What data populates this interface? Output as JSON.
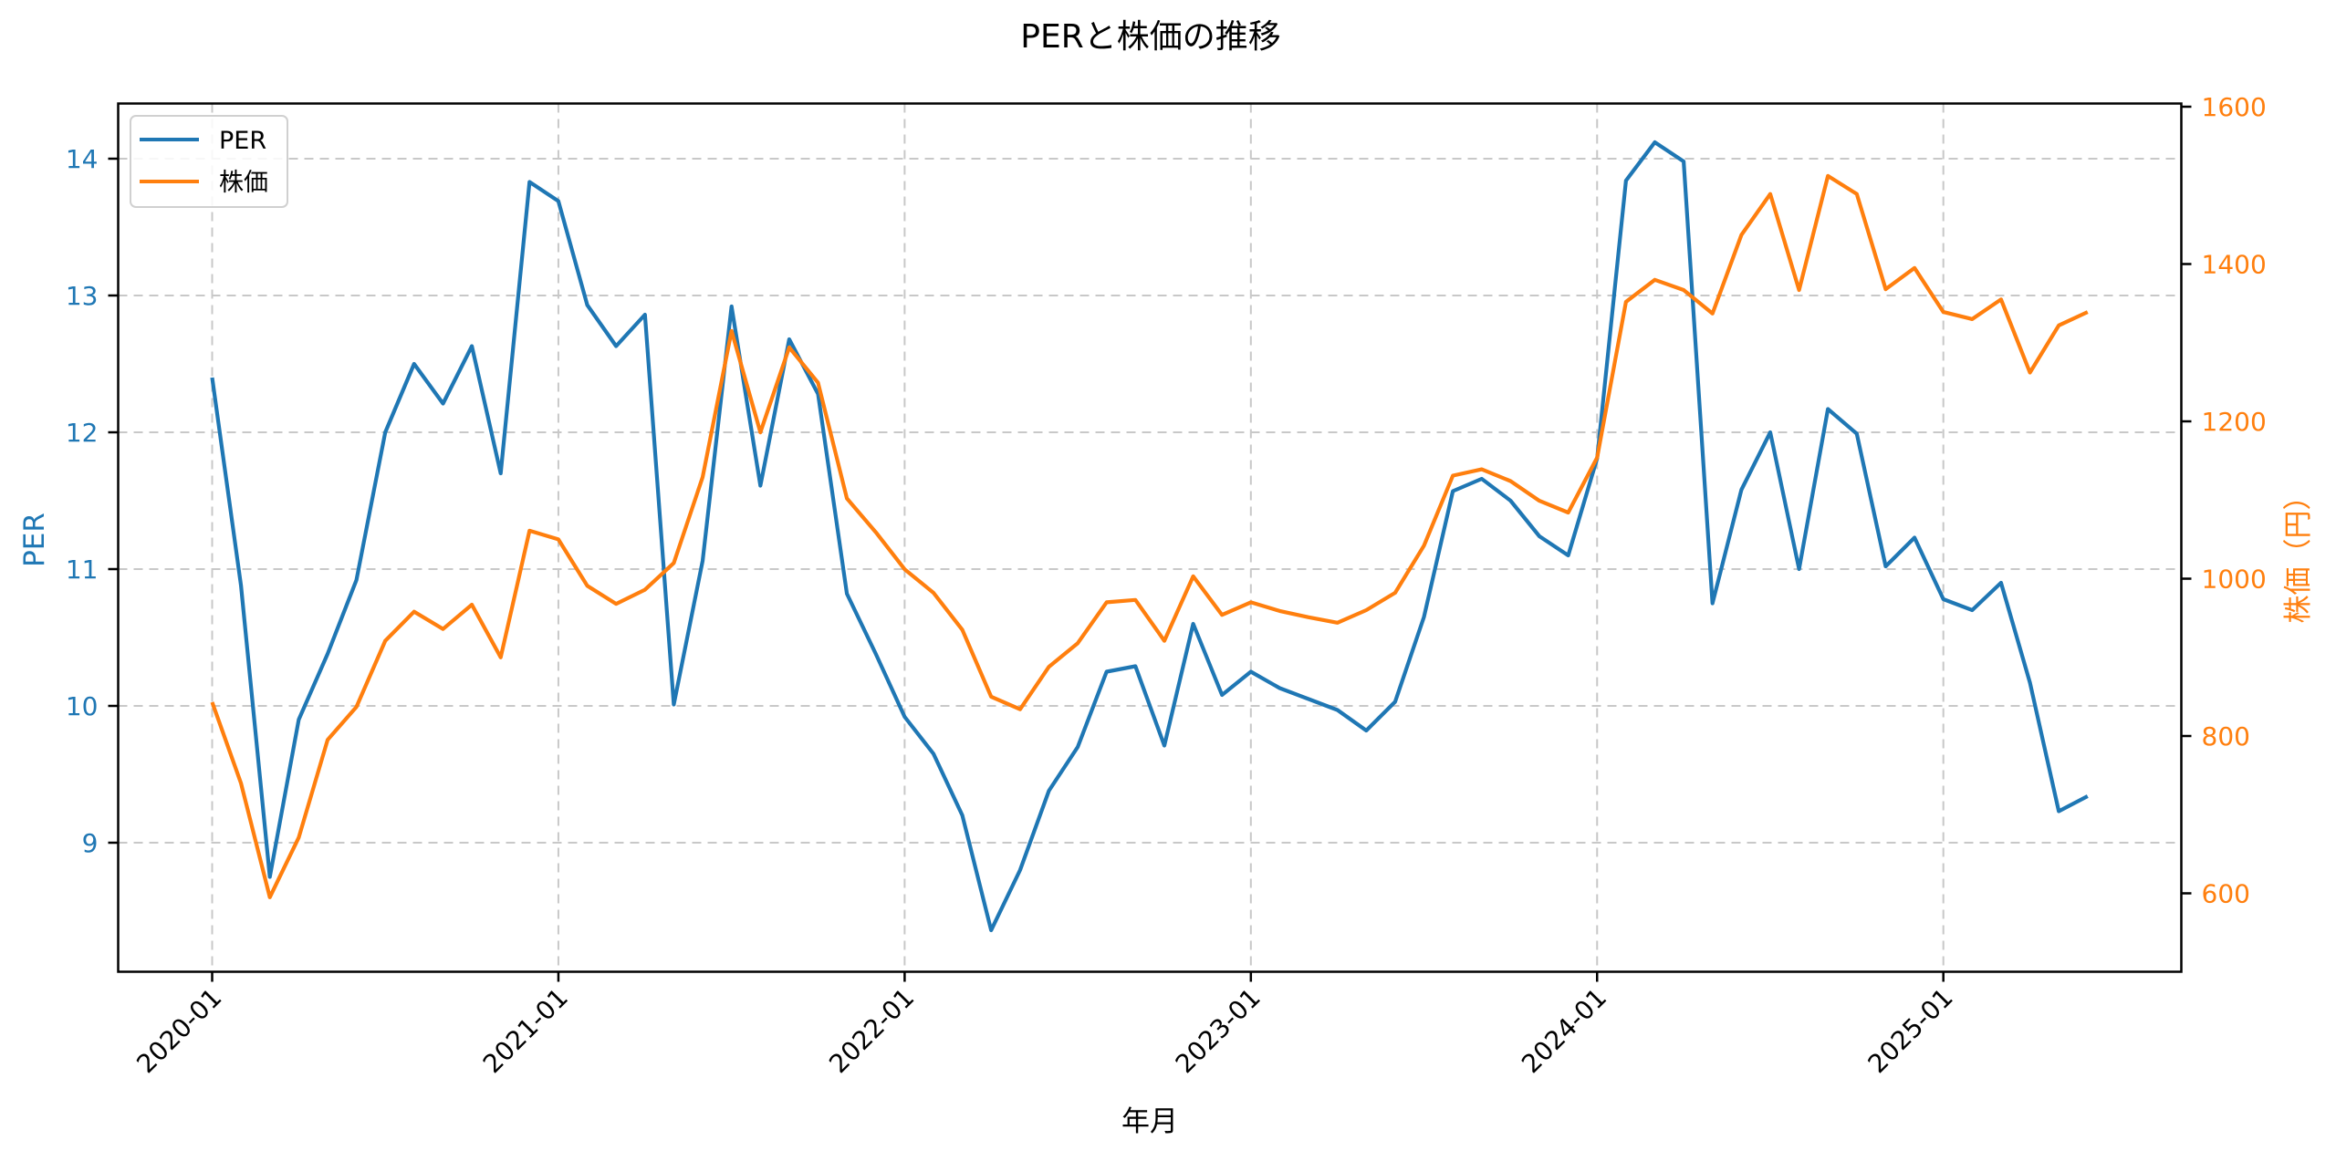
{
  "title": "PERと株価の推移",
  "colors": {
    "per": "#1f77b4",
    "price": "#ff7f0e",
    "grid": "#c8c8c8",
    "axis": "#000000",
    "legend_border": "#d0d0d0"
  },
  "legend": {
    "items": [
      {
        "label": "PER",
        "color": "#1f77b4"
      },
      {
        "label": "株価",
        "color": "#ff7f0e"
      }
    ]
  },
  "axes": {
    "xlabel": "年月",
    "ylabel_left": "PER",
    "ylabel_right": "株価（円）"
  },
  "chart_data": {
    "type": "line",
    "title": "PERと株価の推移",
    "xlabel": "年月",
    "ylabel": "PER",
    "ylabel_secondary": "株価（円）",
    "grid": true,
    "legend_position": "upper left",
    "x_ticks": [
      "2020-01",
      "2021-01",
      "2022-01",
      "2023-01",
      "2024-01",
      "2025-01"
    ],
    "y_ticks_left": [
      9,
      10,
      11,
      12,
      13,
      14
    ],
    "y_ticks_right": [
      600,
      800,
      1000,
      1200,
      1400,
      1600
    ],
    "ylim_left": [
      8.05,
      14.38
    ],
    "ylim_right": [
      496,
      1604
    ],
    "x_start": "2020-01",
    "x": [
      "2020-01",
      "2020-02",
      "2020-03",
      "2020-04",
      "2020-05",
      "2020-06",
      "2020-07",
      "2020-08",
      "2020-09",
      "2020-10",
      "2020-11",
      "2020-12",
      "2021-01",
      "2021-02",
      "2021-03",
      "2021-04",
      "2021-05",
      "2021-06",
      "2021-07",
      "2021-08",
      "2021-09",
      "2021-10",
      "2021-11",
      "2021-12",
      "2022-01",
      "2022-02",
      "2022-03",
      "2022-04",
      "2022-05",
      "2022-06",
      "2022-07",
      "2022-08",
      "2022-09",
      "2022-10",
      "2022-11",
      "2022-12",
      "2023-01",
      "2023-02",
      "2023-03",
      "2023-04",
      "2023-05",
      "2023-06",
      "2023-07",
      "2023-08",
      "2023-09",
      "2023-10",
      "2023-11",
      "2023-12",
      "2024-01",
      "2024-02",
      "2024-03",
      "2024-04",
      "2024-05",
      "2024-06",
      "2024-07",
      "2024-08",
      "2024-09",
      "2024-10",
      "2024-11",
      "2024-12",
      "2025-01",
      "2025-02",
      "2025-03",
      "2025-04",
      "2025-05",
      "2025-06"
    ],
    "series": [
      {
        "name": "PER",
        "axis": "left",
        "color": "#1f77b4",
        "values": [
          12.4,
          10.88,
          8.75,
          9.9,
          10.38,
          10.92,
          12.0,
          12.5,
          12.21,
          12.63,
          11.7,
          13.83,
          13.69,
          12.93,
          12.63,
          12.86,
          10.01,
          11.06,
          12.92,
          11.61,
          12.68,
          12.28,
          10.82,
          10.38,
          9.92,
          9.65,
          9.2,
          8.36,
          8.8,
          9.38,
          9.7,
          10.25,
          10.29,
          9.71,
          10.6,
          10.08,
          10.25,
          10.13,
          10.05,
          9.97,
          9.82,
          10.03,
          10.65,
          11.57,
          11.66,
          11.5,
          11.24,
          11.1,
          11.81,
          13.84,
          14.12,
          13.98,
          10.75,
          11.58,
          12.0,
          11.0,
          12.17,
          11.99,
          11.02,
          11.23,
          10.78,
          10.7,
          10.9,
          10.17,
          9.23,
          9.34
        ]
      },
      {
        "name": "株価",
        "axis": "right",
        "color": "#ff7f0e",
        "values": [
          843,
          740,
          595,
          671,
          795,
          837,
          921,
          958,
          936,
          967,
          900,
          1061,
          1050,
          991,
          968,
          986,
          1020,
          1129,
          1315,
          1186,
          1294,
          1249,
          1102,
          1059,
          1012,
          982,
          935,
          850,
          834,
          888,
          918,
          970,
          973,
          921,
          1003,
          954,
          970,
          959,
          951,
          944,
          960,
          982,
          1042,
          1131,
          1139,
          1124,
          1099,
          1084,
          1154,
          1352,
          1380,
          1367,
          1337,
          1437,
          1489,
          1367,
          1512,
          1489,
          1368,
          1395,
          1339,
          1330,
          1355,
          1262,
          1322,
          1339
        ]
      }
    ]
  }
}
